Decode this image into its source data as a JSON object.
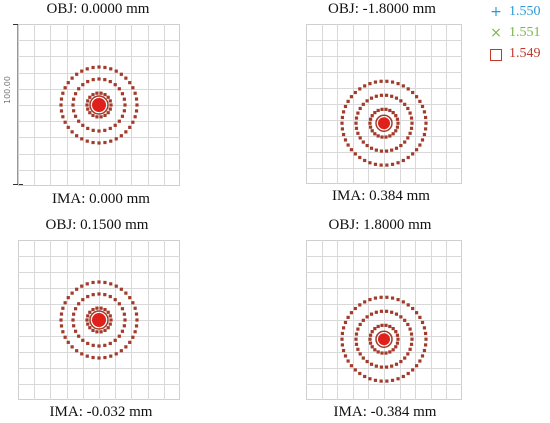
{
  "legend": {
    "items": [
      {
        "symbol": "+",
        "label": "1.550",
        "color": "#2d9ad6"
      },
      {
        "symbol": "×",
        "label": "1.551",
        "color": "#7ab648"
      },
      {
        "symbol": "□",
        "label": "1.549",
        "color": "#c0392b"
      }
    ]
  },
  "scale": {
    "label": "100.00"
  },
  "chart_data": {
    "type": "scatter",
    "title": "",
    "spot_color": "#a23b2b",
    "center_color": "#e0201b",
    "grid": true,
    "grid_divisions": 10,
    "panels": [
      {
        "id": "tl",
        "obj": "OBJ: 0.0000 mm",
        "ima": "IMA: 0.000 mm",
        "center": [
          0,
          0
        ],
        "ring_radii": [
          12,
          26,
          38
        ],
        "ring_counts": [
          18,
          28,
          40
        ],
        "core": 7
      },
      {
        "id": "tr",
        "obj": "OBJ: -1.8000 mm",
        "ima": "IMA: 0.384 mm",
        "center": [
          0,
          0.12
        ],
        "ring_radii": [
          14,
          28,
          42
        ],
        "ring_counts": [
          22,
          34,
          46
        ],
        "core": 6
      },
      {
        "id": "bl",
        "obj": "OBJ: 0.1500 mm",
        "ima": "IMA: -0.032 mm",
        "center": [
          0,
          0
        ],
        "ring_radii": [
          12,
          26,
          38
        ],
        "ring_counts": [
          18,
          28,
          40
        ],
        "core": 7
      },
      {
        "id": "br",
        "obj": "OBJ: 1.8000 mm",
        "ima": "IMA: -0.384 mm",
        "center": [
          0,
          0.12
        ],
        "ring_radii": [
          14,
          28,
          42
        ],
        "ring_counts": [
          22,
          34,
          46
        ],
        "core": 6
      }
    ]
  }
}
